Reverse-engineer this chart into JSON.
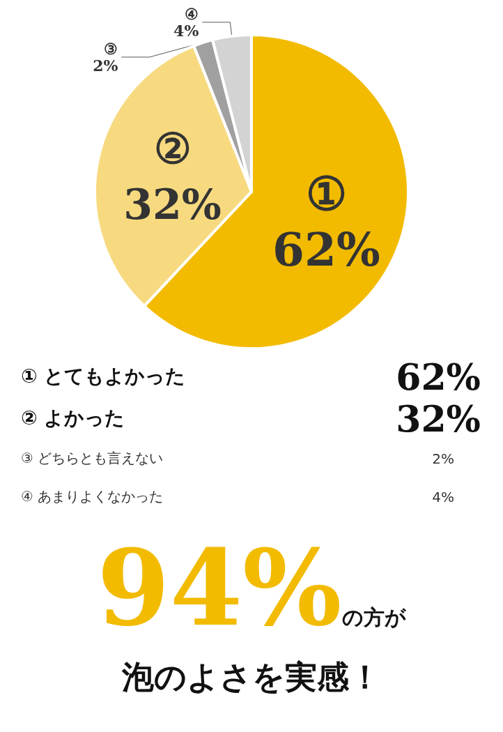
{
  "chart_data": {
    "type": "pie",
    "categories": [
      "①",
      "②",
      "③",
      "④"
    ],
    "values": [
      62,
      32,
      2,
      4
    ],
    "colors": [
      "#f2bb00",
      "#f7da80",
      "#a0a0a0",
      "#d3d3d3"
    ],
    "value_labels": [
      "62%",
      "32%",
      "2%",
      "4%"
    ],
    "annotations": [
      "① とてもよかった",
      "62%",
      "② よかった",
      "32%",
      "③ どちらとも言えない",
      "2%",
      "④ あまりよくなかった",
      "4%",
      "94%",
      "の方が",
      "泡のよさを実感！"
    ]
  }
}
